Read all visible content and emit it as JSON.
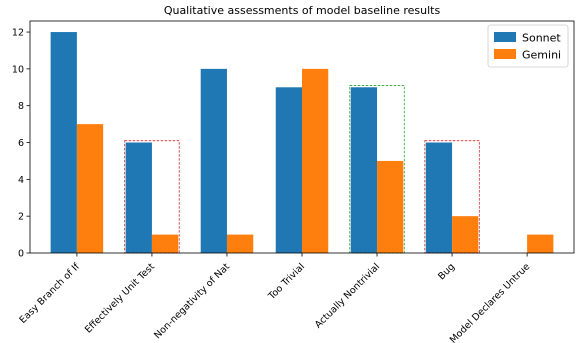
{
  "chart_data": {
    "type": "bar",
    "title": "Qualitative assessments of model baseline results",
    "xlabel": "",
    "ylabel": "",
    "categories": [
      "Easy Branch of If",
      "Effectively Unit Test",
      "Non-negativity of Nat",
      "Too Trivial",
      "Actually Nontrivial",
      "Bug",
      "Model Declares Untrue"
    ],
    "series": [
      {
        "name": "Sonnet",
        "color": "#1f77b4",
        "values": [
          12,
          6,
          10,
          9,
          9,
          6,
          0
        ]
      },
      {
        "name": "Gemini",
        "color": "#ff7f0e",
        "values": [
          7,
          1,
          1,
          10,
          5,
          2,
          1
        ]
      }
    ],
    "ylim": [
      0,
      12.6
    ],
    "yticks": [
      0,
      2,
      4,
      6,
      8,
      10,
      12
    ],
    "grid": false,
    "legend_position": "top-right",
    "highlights": [
      {
        "category": "Effectively Unit Test",
        "color": "#d62728",
        "style": "dashed"
      },
      {
        "category": "Actually Nontrivial",
        "color": "#2ca02c",
        "style": "dashed"
      },
      {
        "category": "Bug",
        "color": "#d62728",
        "style": "dashed"
      }
    ]
  }
}
